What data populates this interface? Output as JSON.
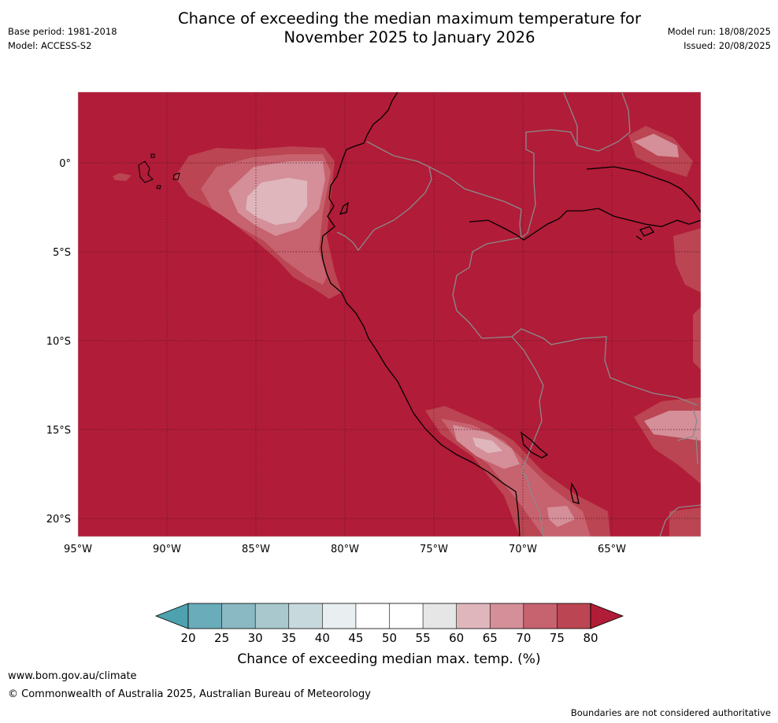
{
  "header": {
    "title_line1": "Chance of exceeding the median maximum temperature for",
    "title_line2": "November 2025 to January 2026",
    "base_period": "Base period: 1981-2018",
    "model": "Model: ACCESS-S2",
    "model_run": "Model run: 18/08/2025",
    "issued": "Issued: 20/08/2025"
  },
  "map": {
    "lon_labels": [
      "95°W",
      "90°W",
      "85°W",
      "80°W",
      "75°W",
      "70°W",
      "65°W"
    ],
    "lat_labels": [
      "0°",
      "5°S",
      "10°S",
      "15°S",
      "20°S"
    ],
    "background_color": "#b11c38"
  },
  "legend": {
    "ticks": [
      "20",
      "25",
      "30",
      "35",
      "40",
      "45",
      "50",
      "55",
      "60",
      "65",
      "70",
      "75",
      "80"
    ],
    "label": "Chance of exceeding median max. temp. (%)",
    "colors": [
      "#4ea2b0",
      "#6aacb9",
      "#8ab8c3",
      "#a9c8ce",
      "#c8d9dd",
      "#e9eff1",
      "#ffffff",
      "#ffffff",
      "#e6e6e6",
      "#e0b6bd",
      "#d48f99",
      "#c7626f",
      "#bb4552",
      "#b11c38"
    ]
  },
  "footer": {
    "url": "www.bom.gov.au/climate",
    "copyright": "© Commonwealth of Australia 2025, Australian Bureau of Meteorology",
    "disclaimer": "Boundaries are not considered authoritative"
  }
}
